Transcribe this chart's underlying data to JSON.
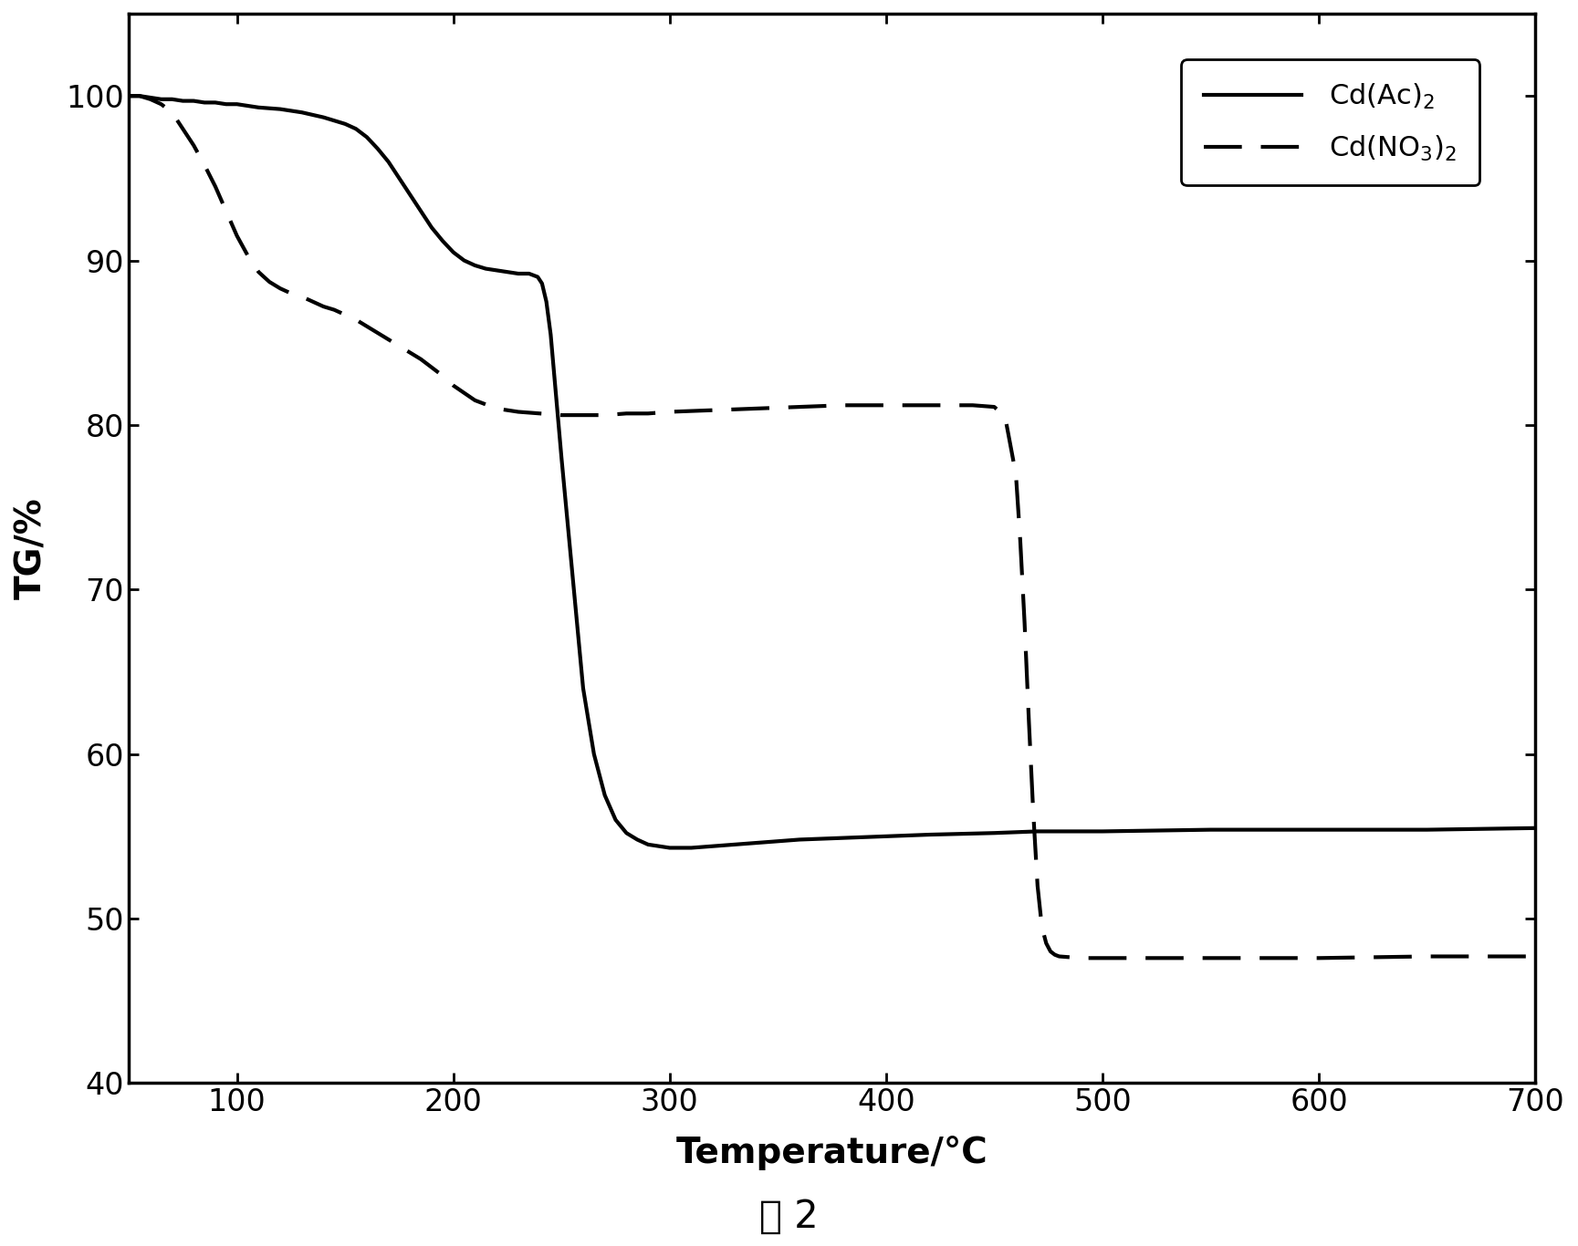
{
  "xlabel": "Temperature/°C",
  "ylabel": "TG/%",
  "caption": "图 2",
  "xlim": [
    50,
    700
  ],
  "ylim": [
    40,
    105
  ],
  "xticks": [
    100,
    200,
    300,
    400,
    500,
    600,
    700
  ],
  "yticks": [
    40,
    50,
    60,
    70,
    80,
    90,
    100
  ],
  "background_color": "#ffffff",
  "line_color": "#000000",
  "legend_label_solid": "Cd(Ac)$_2$",
  "legend_label_dashed": "Cd(NO$_3$)$_2$",
  "solid_x": [
    50,
    55,
    60,
    65,
    70,
    75,
    80,
    85,
    90,
    95,
    100,
    110,
    120,
    130,
    140,
    150,
    155,
    160,
    165,
    170,
    175,
    180,
    185,
    190,
    195,
    200,
    205,
    210,
    215,
    220,
    225,
    230,
    235,
    237,
    239,
    241,
    243,
    245,
    247,
    250,
    255,
    260,
    265,
    270,
    275,
    280,
    285,
    290,
    295,
    300,
    310,
    320,
    340,
    360,
    380,
    400,
    420,
    450,
    470,
    500,
    550,
    600,
    650,
    700
  ],
  "solid_y": [
    100.0,
    100.0,
    99.9,
    99.8,
    99.8,
    99.7,
    99.7,
    99.6,
    99.6,
    99.5,
    99.5,
    99.3,
    99.2,
    99.0,
    98.7,
    98.3,
    98.0,
    97.5,
    96.8,
    96.0,
    95.0,
    94.0,
    93.0,
    92.0,
    91.2,
    90.5,
    90.0,
    89.7,
    89.5,
    89.4,
    89.3,
    89.2,
    89.2,
    89.1,
    89.0,
    88.6,
    87.5,
    85.5,
    82.5,
    78.0,
    71.0,
    64.0,
    60.0,
    57.5,
    56.0,
    55.2,
    54.8,
    54.5,
    54.4,
    54.3,
    54.3,
    54.4,
    54.6,
    54.8,
    54.9,
    55.0,
    55.1,
    55.2,
    55.3,
    55.3,
    55.4,
    55.4,
    55.4,
    55.5
  ],
  "dashed_x": [
    50,
    55,
    60,
    65,
    70,
    75,
    80,
    85,
    90,
    95,
    100,
    105,
    110,
    115,
    120,
    125,
    130,
    135,
    140,
    145,
    150,
    155,
    160,
    165,
    170,
    175,
    180,
    185,
    190,
    195,
    200,
    210,
    220,
    230,
    240,
    250,
    260,
    270,
    280,
    290,
    300,
    320,
    340,
    360,
    380,
    400,
    420,
    440,
    450,
    455,
    460,
    462,
    464,
    466,
    468,
    470,
    472,
    474,
    476,
    478,
    480,
    490,
    500,
    520,
    550,
    600,
    650,
    700
  ],
  "dashed_y": [
    100.0,
    100.0,
    99.8,
    99.5,
    99.0,
    98.0,
    97.0,
    95.8,
    94.5,
    93.0,
    91.5,
    90.3,
    89.3,
    88.7,
    88.3,
    88.0,
    87.8,
    87.5,
    87.2,
    87.0,
    86.7,
    86.4,
    86.0,
    85.6,
    85.2,
    84.8,
    84.4,
    84.0,
    83.5,
    83.0,
    82.4,
    81.5,
    81.0,
    80.8,
    80.7,
    80.6,
    80.6,
    80.6,
    80.7,
    80.7,
    80.8,
    80.9,
    81.0,
    81.1,
    81.2,
    81.2,
    81.2,
    81.2,
    81.1,
    80.5,
    77.0,
    73.0,
    68.0,
    62.0,
    56.5,
    52.0,
    49.5,
    48.5,
    48.0,
    47.8,
    47.7,
    47.6,
    47.6,
    47.6,
    47.6,
    47.6,
    47.7,
    47.7
  ]
}
